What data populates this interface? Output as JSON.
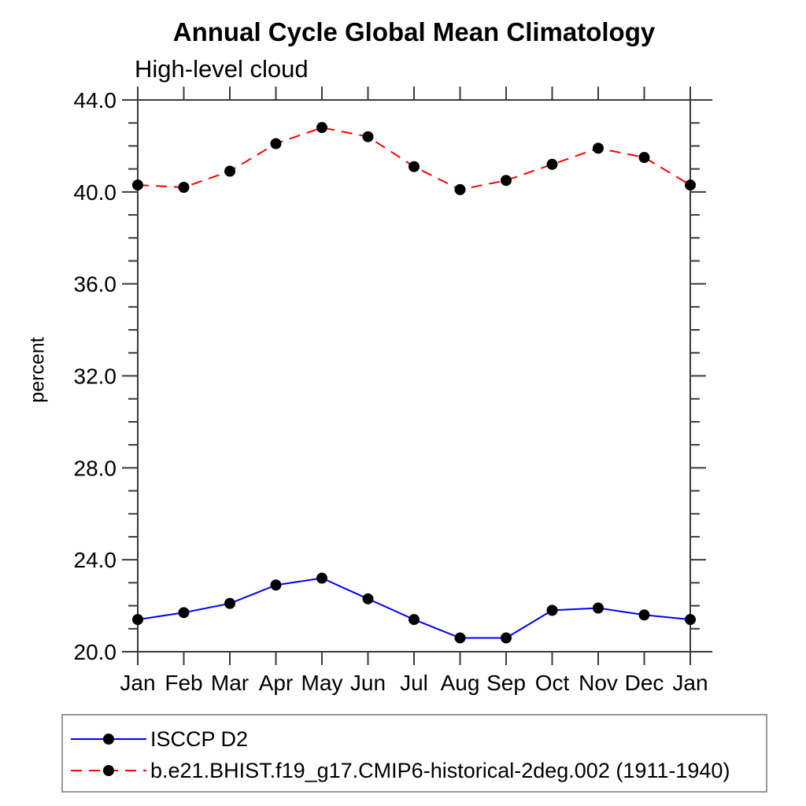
{
  "chart_data": {
    "type": "line",
    "title": "Annual Cycle Global Mean Climatology",
    "subtitle": "High-level cloud",
    "ylabel": "percent",
    "xlabel": "",
    "categories": [
      "Jan",
      "Feb",
      "Mar",
      "Apr",
      "May",
      "Jun",
      "Jul",
      "Aug",
      "Sep",
      "Oct",
      "Nov",
      "Dec",
      "Jan"
    ],
    "ylim": [
      20.0,
      44.0
    ],
    "ytick_major_step": 4.0,
    "ytick_minor_step": 1.0,
    "ytick_labels": [
      "20.0",
      "24.0",
      "28.0",
      "32.0",
      "36.0",
      "40.0",
      "44.0"
    ],
    "grid": false,
    "legend_position": "bottom",
    "axis_color": "#3a3a3a",
    "series": [
      {
        "name": "ISCCP D2",
        "color": "#0000ff",
        "line_style": "solid",
        "marker": "filled-circle",
        "marker_color": "#000000",
        "values": [
          21.4,
          21.7,
          22.1,
          22.9,
          23.2,
          22.3,
          21.4,
          20.6,
          20.6,
          21.8,
          21.9,
          21.6,
          21.4
        ]
      },
      {
        "name": "b.e21.BHIST.f19_g17.CMIP6-historical-2deg.002 (1911-1940)",
        "color": "#ff0000",
        "line_style": "dashed",
        "marker": "filled-circle",
        "marker_color": "#000000",
        "values": [
          40.3,
          40.2,
          40.9,
          42.1,
          42.8,
          42.4,
          41.1,
          40.1,
          40.5,
          41.2,
          41.9,
          41.5,
          40.3
        ]
      }
    ]
  }
}
